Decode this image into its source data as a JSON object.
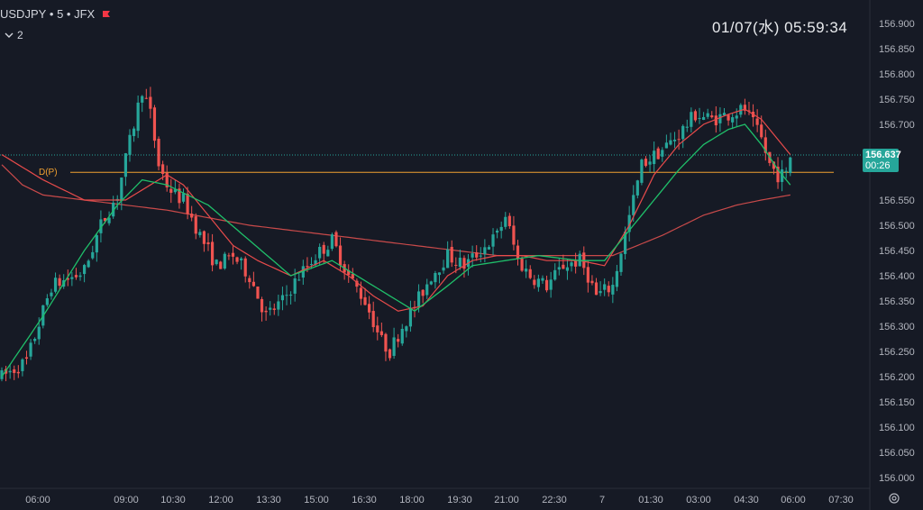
{
  "header": {
    "symbol": "USDJPY",
    "interval": "5",
    "exchange": "JFX",
    "indicator_toggle": "2"
  },
  "clock": {
    "datetime": "01/07(水)  05:59:34"
  },
  "last_price": {
    "value": "156.637",
    "countdown": "00:26"
  },
  "colors": {
    "up": "#26a69a",
    "down": "#ef5350",
    "ma_fast": "#e84b4b",
    "ma_slow": "#1fbf6a",
    "pivot": "#f0a030",
    "background": "#161a25"
  },
  "icons": [
    "chevron-down-icon",
    "flag-icon",
    "settings-icon"
  ],
  "chart_data": {
    "type": "candlestick",
    "y_axis": {
      "min": 156.0,
      "max": 156.9,
      "ticks": [
        "156.900",
        "156.850",
        "156.800",
        "156.750",
        "156.700",
        "156.650",
        "156.600",
        "156.550",
        "156.500",
        "156.450",
        "156.400",
        "156.350",
        "156.300",
        "156.250",
        "156.200",
        "156.150",
        "156.100",
        "156.050",
        "156.000"
      ]
    },
    "x_axis": {
      "ticks": [
        "06:00",
        "09:00",
        "10:30",
        "12:00",
        "13:30",
        "15:00",
        "16:30",
        "18:00",
        "19:30",
        "21:00",
        "22:30",
        "7",
        "01:30",
        "03:00",
        "04:30",
        "06:00",
        "07:30"
      ]
    },
    "pivot_line": {
      "label": "D(P)",
      "value": 156.605
    },
    "last_value": 156.637,
    "candle_anchors": [
      [
        0,
        156.2
      ],
      [
        6,
        156.23
      ],
      [
        12,
        156.38
      ],
      [
        18,
        156.4
      ],
      [
        20,
        156.41
      ],
      [
        24,
        156.5
      ],
      [
        28,
        156.56
      ],
      [
        32,
        156.7
      ],
      [
        34,
        156.77
      ],
      [
        36,
        156.72
      ],
      [
        38,
        156.62
      ],
      [
        40,
        156.58
      ],
      [
        42,
        156.56
      ],
      [
        44,
        156.55
      ],
      [
        48,
        156.48
      ],
      [
        52,
        156.42
      ],
      [
        56,
        156.44
      ],
      [
        60,
        156.4
      ],
      [
        64,
        156.32
      ],
      [
        68,
        156.35
      ],
      [
        72,
        156.4
      ],
      [
        76,
        156.44
      ],
      [
        80,
        156.47
      ],
      [
        84,
        156.4
      ],
      [
        88,
        156.35
      ],
      [
        92,
        156.27
      ],
      [
        94,
        156.25
      ],
      [
        97,
        156.3
      ],
      [
        100,
        156.34
      ],
      [
        104,
        156.4
      ],
      [
        108,
        156.44
      ],
      [
        112,
        156.42
      ],
      [
        116,
        156.45
      ],
      [
        120,
        156.48
      ],
      [
        122,
        156.52
      ],
      [
        125,
        156.43
      ],
      [
        128,
        156.4
      ],
      [
        132,
        156.38
      ],
      [
        136,
        156.42
      ],
      [
        140,
        156.43
      ],
      [
        142,
        156.4
      ],
      [
        144,
        156.36
      ],
      [
        148,
        156.38
      ],
      [
        150,
        156.45
      ],
      [
        153,
        156.55
      ],
      [
        155,
        156.62
      ],
      [
        160,
        156.65
      ],
      [
        164,
        156.68
      ],
      [
        168,
        156.72
      ],
      [
        172,
        156.71
      ],
      [
        176,
        156.72
      ],
      [
        180,
        156.73
      ],
      [
        182,
        156.7
      ],
      [
        184,
        156.67
      ],
      [
        186,
        156.62
      ],
      [
        188,
        156.6
      ],
      [
        190,
        156.6
      ],
      [
        191,
        156.637
      ]
    ],
    "ma_fast": [
      [
        0,
        156.64
      ],
      [
        10,
        156.59
      ],
      [
        20,
        156.55
      ],
      [
        30,
        156.55
      ],
      [
        36,
        156.58
      ],
      [
        40,
        156.6
      ],
      [
        44,
        156.58
      ],
      [
        50,
        156.52
      ],
      [
        56,
        156.46
      ],
      [
        62,
        156.43
      ],
      [
        70,
        156.4
      ],
      [
        78,
        156.43
      ],
      [
        84,
        156.4
      ],
      [
        90,
        156.36
      ],
      [
        96,
        156.33
      ],
      [
        102,
        156.34
      ],
      [
        108,
        156.4
      ],
      [
        114,
        156.43
      ],
      [
        120,
        156.44
      ],
      [
        126,
        156.44
      ],
      [
        132,
        156.43
      ],
      [
        140,
        156.43
      ],
      [
        146,
        156.42
      ],
      [
        152,
        156.5
      ],
      [
        158,
        156.6
      ],
      [
        164,
        156.66
      ],
      [
        170,
        156.7
      ],
      [
        176,
        156.72
      ],
      [
        180,
        156.73
      ],
      [
        184,
        156.71
      ],
      [
        188,
        156.67
      ],
      [
        191,
        156.64
      ]
    ],
    "ma_slow": [
      [
        0,
        156.2
      ],
      [
        10,
        156.32
      ],
      [
        20,
        156.45
      ],
      [
        28,
        156.54
      ],
      [
        34,
        156.59
      ],
      [
        40,
        156.58
      ],
      [
        50,
        156.54
      ],
      [
        60,
        156.47
      ],
      [
        70,
        156.4
      ],
      [
        80,
        156.43
      ],
      [
        90,
        156.38
      ],
      [
        100,
        156.33
      ],
      [
        108,
        156.38
      ],
      [
        114,
        156.42
      ],
      [
        122,
        156.43
      ],
      [
        130,
        156.44
      ],
      [
        140,
        156.43
      ],
      [
        146,
        156.43
      ],
      [
        152,
        156.49
      ],
      [
        158,
        156.55
      ],
      [
        164,
        156.61
      ],
      [
        170,
        156.66
      ],
      [
        176,
        156.69
      ],
      [
        180,
        156.7
      ],
      [
        184,
        156.66
      ],
      [
        188,
        156.61
      ],
      [
        191,
        156.58
      ]
    ],
    "ma_long": [
      [
        0,
        156.62
      ],
      [
        5,
        156.58
      ],
      [
        10,
        156.56
      ],
      [
        20,
        156.55
      ],
      [
        40,
        156.53
      ],
      [
        60,
        156.5
      ],
      [
        80,
        156.48
      ],
      [
        100,
        156.46
      ],
      [
        120,
        156.44
      ],
      [
        140,
        156.44
      ],
      [
        148,
        156.44
      ],
      [
        160,
        156.48
      ],
      [
        170,
        156.52
      ],
      [
        178,
        156.54
      ],
      [
        184,
        156.55
      ],
      [
        191,
        156.56
      ]
    ]
  }
}
